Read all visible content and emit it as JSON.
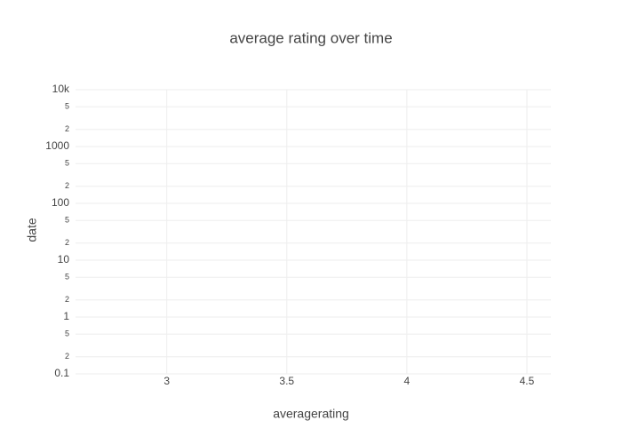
{
  "chart_data": {
    "type": "scatter",
    "title": "average rating over time",
    "x_label": "averagerating",
    "y_label": "date",
    "xlim": [
      2.62,
      4.6
    ],
    "xticks": [
      3,
      3.5,
      4,
      4.5
    ],
    "ylim": [
      0.1,
      10000
    ],
    "y_log": true,
    "yticks": [
      0.1,
      {
        "value": 0.2,
        "label": "2"
      },
      {
        "value": 0.5,
        "label": "5"
      },
      1,
      {
        "value": 2,
        "label": "2"
      },
      {
        "value": 5,
        "label": "5"
      },
      10,
      {
        "value": 20,
        "label": "2"
      },
      {
        "value": 50,
        "label": "5"
      },
      100,
      {
        "value": 200,
        "label": "2"
      },
      {
        "value": 500,
        "label": "5"
      },
      1000,
      {
        "value": 2000,
        "label": "2"
      },
      {
        "value": 5000,
        "label": "5"
      },
      {
        "value": 10000,
        "label": "10k"
      }
    ],
    "grid": true
  }
}
